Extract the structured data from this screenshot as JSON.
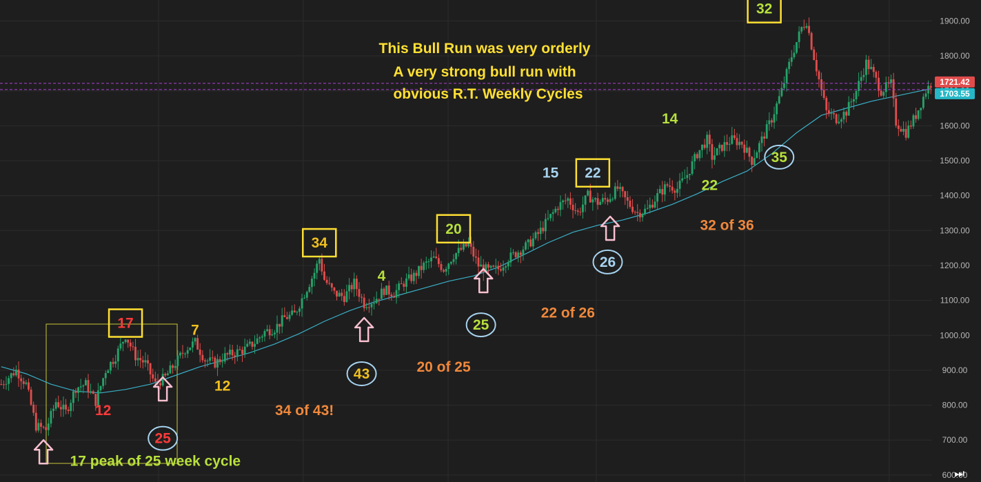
{
  "chart_data": {
    "type": "candlestick",
    "title": "This Bull Run was very orderly",
    "subtitle": [
      "A very strong bull run with",
      "obvious R.T. Weekly Cycles"
    ],
    "ylim": [
      580,
      1960
    ],
    "y_ticks": [
      600,
      700,
      800,
      900,
      1000,
      1100,
      1200,
      1300,
      1400,
      1500,
      1600,
      1700,
      1800,
      1900
    ],
    "y_tick_labels": [
      "600.00",
      "700.00",
      "800.00",
      "900.00",
      "1000.00",
      "1100.00",
      "1200.00",
      "1300.00",
      "1400.00",
      "1500.00",
      "1600.00",
      "1700.00",
      "1800.00",
      "1900.00"
    ],
    "grid": true,
    "price_lines": [
      {
        "value": 1721.42,
        "label": "1721.42",
        "color": "#e04c4c"
      },
      {
        "value": 1703.55,
        "label": "1703.55",
        "color": "#26b8c8"
      }
    ],
    "colors": {
      "up": "#26a269",
      "down": "#e04c4c",
      "ma": "#3ab0c8",
      "annotation_yellow": "#ffe033",
      "annotation_orange": "#f0883c",
      "annotation_green": "#b8e03c",
      "annotation_blue": "#a8d4f0",
      "arrow_pink": "#f8c0d0"
    },
    "anchors": [
      [
        0,
        860
      ],
      [
        6,
        900
      ],
      [
        10,
        860
      ],
      [
        14,
        740
      ],
      [
        18,
        730
      ],
      [
        22,
        810
      ],
      [
        26,
        780
      ],
      [
        30,
        850
      ],
      [
        34,
        860
      ],
      [
        38,
        810
      ],
      [
        42,
        900
      ],
      [
        46,
        940
      ],
      [
        50,
        1000
      ],
      [
        54,
        940
      ],
      [
        58,
        920
      ],
      [
        62,
        860
      ],
      [
        66,
        880
      ],
      [
        70,
        920
      ],
      [
        74,
        960
      ],
      [
        78,
        980
      ],
      [
        82,
        930
      ],
      [
        86,
        920
      ],
      [
        90,
        940
      ],
      [
        94,
        950
      ],
      [
        98,
        960
      ],
      [
        102,
        980
      ],
      [
        106,
        1010
      ],
      [
        110,
        1020
      ],
      [
        114,
        1050
      ],
      [
        118,
        1060
      ],
      [
        122,
        1120
      ],
      [
        126,
        1180
      ],
      [
        128,
        1220
      ],
      [
        130,
        1160
      ],
      [
        134,
        1120
      ],
      [
        138,
        1110
      ],
      [
        142,
        1150
      ],
      [
        146,
        1090
      ],
      [
        150,
        1100
      ],
      [
        154,
        1130
      ],
      [
        158,
        1120
      ],
      [
        162,
        1150
      ],
      [
        166,
        1170
      ],
      [
        170,
        1200
      ],
      [
        174,
        1220
      ],
      [
        178,
        1190
      ],
      [
        182,
        1230
      ],
      [
        186,
        1250
      ],
      [
        188,
        1260
      ],
      [
        192,
        1200
      ],
      [
        196,
        1185
      ],
      [
        200,
        1190
      ],
      [
        204,
        1220
      ],
      [
        208,
        1240
      ],
      [
        212,
        1260
      ],
      [
        216,
        1290
      ],
      [
        220,
        1330
      ],
      [
        224,
        1370
      ],
      [
        228,
        1390
      ],
      [
        232,
        1350
      ],
      [
        236,
        1400
      ],
      [
        240,
        1380
      ],
      [
        244,
        1390
      ],
      [
        248,
        1420
      ],
      [
        252,
        1380
      ],
      [
        256,
        1350
      ],
      [
        260,
        1360
      ],
      [
        264,
        1400
      ],
      [
        268,
        1430
      ],
      [
        272,
        1420
      ],
      [
        276,
        1460
      ],
      [
        280,
        1520
      ],
      [
        284,
        1560
      ],
      [
        286,
        1510
      ],
      [
        290,
        1540
      ],
      [
        294,
        1560
      ],
      [
        298,
        1550
      ],
      [
        302,
        1500
      ],
      [
        306,
        1560
      ],
      [
        310,
        1620
      ],
      [
        314,
        1700
      ],
      [
        318,
        1800
      ],
      [
        322,
        1880
      ],
      [
        324,
        1900
      ],
      [
        326,
        1830
      ],
      [
        330,
        1700
      ],
      [
        332,
        1640
      ],
      [
        336,
        1620
      ],
      [
        340,
        1640
      ],
      [
        344,
        1700
      ],
      [
        348,
        1780
      ],
      [
        350,
        1760
      ],
      [
        354,
        1700
      ],
      [
        358,
        1720
      ],
      [
        360,
        1610
      ],
      [
        364,
        1580
      ],
      [
        368,
        1630
      ],
      [
        372,
        1700
      ],
      [
        374,
        1720
      ]
    ],
    "ma_anchors": [
      [
        0,
        910
      ],
      [
        10,
        890
      ],
      [
        20,
        860
      ],
      [
        30,
        840
      ],
      [
        40,
        835
      ],
      [
        50,
        845
      ],
      [
        60,
        860
      ],
      [
        70,
        885
      ],
      [
        80,
        910
      ],
      [
        90,
        930
      ],
      [
        100,
        950
      ],
      [
        110,
        975
      ],
      [
        120,
        1005
      ],
      [
        130,
        1040
      ],
      [
        140,
        1070
      ],
      [
        150,
        1095
      ],
      [
        160,
        1115
      ],
      [
        170,
        1135
      ],
      [
        180,
        1155
      ],
      [
        190,
        1170
      ],
      [
        200,
        1195
      ],
      [
        210,
        1230
      ],
      [
        220,
        1265
      ],
      [
        230,
        1295
      ],
      [
        240,
        1315
      ],
      [
        250,
        1330
      ],
      [
        260,
        1350
      ],
      [
        270,
        1375
      ],
      [
        280,
        1405
      ],
      [
        290,
        1440
      ],
      [
        300,
        1470
      ],
      [
        310,
        1520
      ],
      [
        320,
        1580
      ],
      [
        330,
        1630
      ],
      [
        340,
        1650
      ],
      [
        350,
        1670
      ],
      [
        360,
        1685
      ],
      [
        370,
        1700
      ],
      [
        374,
        1706
      ]
    ],
    "annotations": [
      {
        "text": "17",
        "color": "#ff3a3a",
        "boxed": true,
        "bar": 50,
        "price": 1035
      },
      {
        "text": "12",
        "color": "#ff3a3a",
        "bar": 41,
        "price": 785
      },
      {
        "text": "25",
        "color": "#ff3a3a",
        "circled": true,
        "bar": 65,
        "price": 705
      },
      {
        "text": "7",
        "color": "#f0c020",
        "bar": 78,
        "price": 1015
      },
      {
        "text": "12",
        "color": "#f0c020",
        "bar": 89,
        "price": 855
      },
      {
        "text": "34",
        "color": "#f0c020",
        "boxed": true,
        "bar": 128,
        "price": 1265
      },
      {
        "text": "34 of 43!",
        "color": "#f0883c",
        "bar": 122,
        "price": 785
      },
      {
        "text": "43",
        "color": "#f0c020",
        "circled": true,
        "bar": 145,
        "price": 890
      },
      {
        "text": "4",
        "color": "#b8e03c",
        "bar": 153,
        "price": 1170
      },
      {
        "text": "20 of 25",
        "color": "#f0883c",
        "bar": 178,
        "price": 910
      },
      {
        "text": "20",
        "color": "#b8e03c",
        "boxed": true,
        "bar": 182,
        "price": 1305
      },
      {
        "text": "25",
        "color": "#b8e03c",
        "circled": true,
        "bar": 193,
        "price": 1030
      },
      {
        "text": "15",
        "color": "#a8d4f0",
        "bar": 221,
        "price": 1465
      },
      {
        "text": "22",
        "color": "#a8d4f0",
        "boxed": true,
        "bar": 238,
        "price": 1465
      },
      {
        "text": "22 of 26",
        "color": "#f0883c",
        "bar": 228,
        "price": 1065
      },
      {
        "text": "26",
        "color": "#a8d4f0",
        "circled": true,
        "bar": 244,
        "price": 1210
      },
      {
        "text": "14",
        "color": "#b8e03c",
        "bar": 269,
        "price": 1620
      },
      {
        "text": "22",
        "color": "#b8e03c",
        "bar": 285,
        "price": 1430
      },
      {
        "text": "32 of 36",
        "color": "#f0883c",
        "bar": 292,
        "price": 1315
      },
      {
        "text": "32",
        "color": "#b8e03c",
        "boxed": true,
        "bar": 307,
        "price": 1935
      },
      {
        "text": "35",
        "color": "#b8e03c",
        "circled": true,
        "bar": 313,
        "price": 1510
      },
      {
        "text": "17 peak of 25 week cycle",
        "color": "#b8e03c",
        "bar": 62,
        "price": 640
      }
    ],
    "arrows": [
      {
        "bar": 17,
        "price_top": 700,
        "label": "arrow-17"
      },
      {
        "bar": 65,
        "price_top": 880,
        "label": "arrow-25"
      },
      {
        "bar": 146,
        "price_top": 1050,
        "label": "arrow-43"
      },
      {
        "bar": 194,
        "price_top": 1190,
        "label": "arrow-25b"
      },
      {
        "bar": 245,
        "price_top": 1340,
        "label": "arrow-26"
      }
    ]
  }
}
